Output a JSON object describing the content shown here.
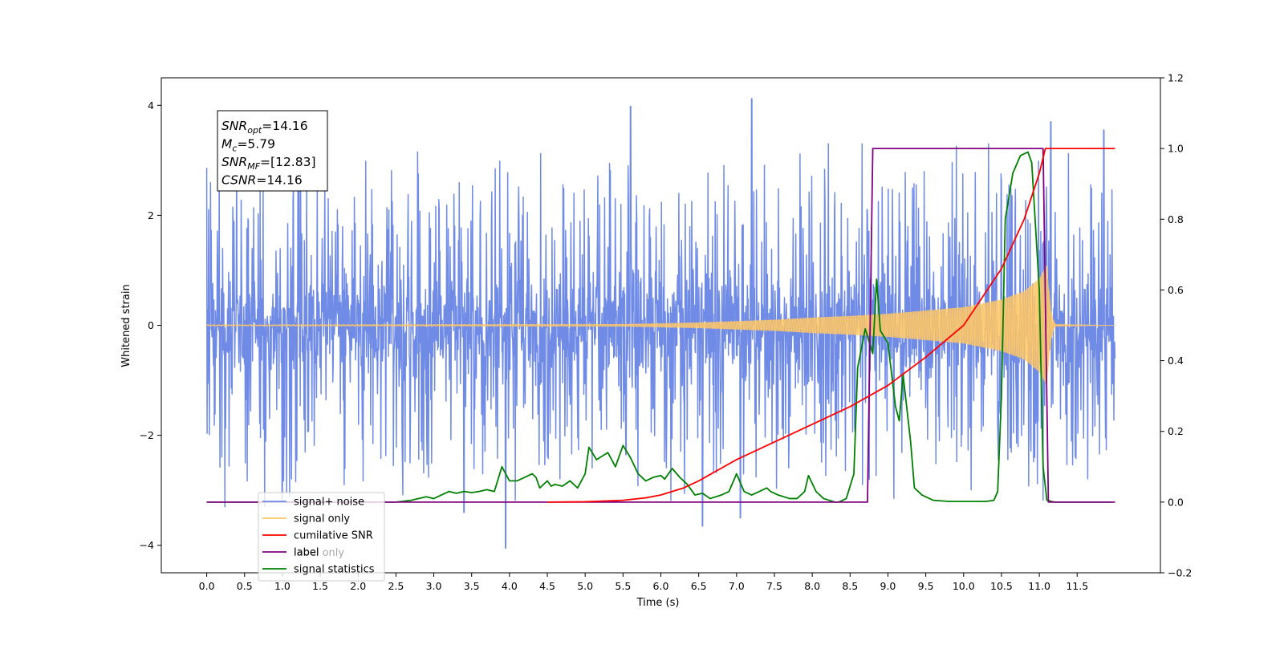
{
  "chart_data": {
    "type": "line",
    "xlabel": "Time (s)",
    "ylabel": "Whitened strain",
    "ylabel_right": "",
    "xlim": [
      -0.6,
      12.6
    ],
    "ylim": [
      -4.5,
      4.5
    ],
    "ylim_right": [
      -0.2,
      1.2
    ],
    "x_ticks": [
      0.0,
      0.5,
      1.0,
      1.5,
      2.0,
      2.5,
      3.0,
      3.5,
      4.0,
      4.5,
      5.0,
      5.5,
      6.0,
      6.5,
      7.0,
      7.5,
      8.0,
      8.5,
      9.0,
      9.5,
      10.0,
      10.5,
      11.0,
      11.5
    ],
    "x_tick_labels": [
      "0.0",
      "0.5",
      "1.0",
      "1.5",
      "2.0",
      "2.5",
      "3.0",
      "3.5",
      "4.0",
      "4.5",
      "5.0",
      "5.5",
      "6.0",
      "6.5",
      "7.0",
      "7.5",
      "8.0",
      "8.5",
      "9.0",
      "9.5",
      "10.0",
      "10.5",
      "11.0",
      "11.5"
    ],
    "y_ticks": [
      -4,
      -2,
      0,
      2,
      4
    ],
    "y_tick_labels": [
      "−4",
      "−2",
      "0",
      "2",
      "4"
    ],
    "y_right_ticks": [
      -0.2,
      0.0,
      0.2,
      0.4,
      0.6,
      0.8,
      1.0,
      1.2
    ],
    "y_right_tick_labels": [
      "−0.2",
      "0.0",
      "0.2",
      "0.4",
      "0.6",
      "0.8",
      "1.0",
      "1.2"
    ],
    "grid": false,
    "annotation": {
      "lines": [
        {
          "main": "SNR",
          "sub": "opt",
          "value": "=14.16"
        },
        {
          "main": "M",
          "sub": "c",
          "value": "=5.79"
        },
        {
          "main": "SNR",
          "sub": "MF",
          "value": "=[12.83]"
        },
        {
          "main": "CSNR",
          "sub": "",
          "value": "=14.16"
        }
      ]
    },
    "legend": {
      "placement": "lower-left",
      "entries": [
        {
          "label": "signal+ noise",
          "color": "#6f8be6"
        },
        {
          "label": "signal only",
          "color": "#ffc766"
        },
        {
          "label": "cumilative SNR",
          "color": "#ff0000"
        },
        {
          "label": "label",
          "color": "#800080"
        },
        {
          "label": "signal statistics",
          "color": "#008000"
        }
      ],
      "hidden_label": "label only"
    },
    "series": [
      {
        "name": "signal+ noise",
        "axis": "left",
        "color": "#6f8be6",
        "x_range": [
          0.0,
          12.0
        ],
        "envelope_typical": 1.9,
        "peak_spikes": [
          [
            1.0,
            -3.2
          ],
          [
            3.4,
            -3.4
          ],
          [
            3.95,
            -4.05
          ],
          [
            5.6,
            3.98
          ],
          [
            6.55,
            -3.65
          ],
          [
            7.05,
            -3.5
          ],
          [
            7.2,
            4.12
          ],
          [
            11.85,
            3.55
          ],
          [
            11.15,
            3.7
          ]
        ]
      },
      {
        "name": "signal only",
        "axis": "left",
        "color": "#ffc766",
        "x_range": [
          0.0,
          12.0
        ],
        "amplitude_envelope": [
          [
            0.0,
            0.01
          ],
          [
            5.5,
            0.02
          ],
          [
            6.5,
            0.05
          ],
          [
            7.5,
            0.1
          ],
          [
            8.0,
            0.14
          ],
          [
            8.5,
            0.17
          ],
          [
            9.0,
            0.21
          ],
          [
            9.5,
            0.27
          ],
          [
            10.0,
            0.33
          ],
          [
            10.5,
            0.47
          ],
          [
            10.8,
            0.62
          ],
          [
            11.0,
            0.85
          ],
          [
            11.1,
            1.1
          ],
          [
            11.15,
            0.3
          ],
          [
            11.2,
            0.02
          ],
          [
            12.0,
            0.0
          ]
        ]
      },
      {
        "name": "cumilative SNR",
        "axis": "right",
        "color": "#ff0000",
        "points": [
          [
            4.5,
            0.0
          ],
          [
            5.0,
            0.001
          ],
          [
            5.5,
            0.005
          ],
          [
            5.8,
            0.012
          ],
          [
            6.0,
            0.02
          ],
          [
            6.3,
            0.04
          ],
          [
            6.5,
            0.06
          ],
          [
            7.0,
            0.12
          ],
          [
            7.5,
            0.17
          ],
          [
            8.0,
            0.22
          ],
          [
            8.5,
            0.27
          ],
          [
            9.0,
            0.33
          ],
          [
            9.5,
            0.41
          ],
          [
            10.0,
            0.5
          ],
          [
            10.5,
            0.66
          ],
          [
            10.8,
            0.8
          ],
          [
            11.0,
            0.93
          ],
          [
            11.08,
            1.0
          ],
          [
            12.0,
            1.0
          ]
        ]
      },
      {
        "name": "label",
        "axis": "right",
        "color": "#800080",
        "points": [
          [
            0.0,
            0.0
          ],
          [
            8.73,
            0.0
          ],
          [
            8.8,
            1.0
          ],
          [
            11.05,
            1.0
          ],
          [
            11.12,
            0.0
          ],
          [
            12.0,
            0.0
          ]
        ]
      },
      {
        "name": "signal statistics",
        "axis": "right",
        "color": "#008000",
        "points": [
          [
            0.0,
            0.0
          ],
          [
            2.5,
            0.0
          ],
          [
            2.7,
            0.005
          ],
          [
            2.9,
            0.015
          ],
          [
            3.0,
            0.01
          ],
          [
            3.1,
            0.02
          ],
          [
            3.2,
            0.03
          ],
          [
            3.3,
            0.025
          ],
          [
            3.4,
            0.03
          ],
          [
            3.5,
            0.027
          ],
          [
            3.6,
            0.03
          ],
          [
            3.7,
            0.035
          ],
          [
            3.8,
            0.03
          ],
          [
            3.9,
            0.1
          ],
          [
            4.0,
            0.06
          ],
          [
            4.1,
            0.06
          ],
          [
            4.2,
            0.07
          ],
          [
            4.3,
            0.08
          ],
          [
            4.35,
            0.07
          ],
          [
            4.4,
            0.04
          ],
          [
            4.5,
            0.06
          ],
          [
            4.55,
            0.045
          ],
          [
            4.6,
            0.05
          ],
          [
            4.7,
            0.045
          ],
          [
            4.8,
            0.06
          ],
          [
            4.9,
            0.04
          ],
          [
            5.0,
            0.08
          ],
          [
            5.05,
            0.155
          ],
          [
            5.15,
            0.12
          ],
          [
            5.3,
            0.14
          ],
          [
            5.4,
            0.1
          ],
          [
            5.5,
            0.16
          ],
          [
            5.6,
            0.125
          ],
          [
            5.7,
            0.08
          ],
          [
            5.8,
            0.06
          ],
          [
            5.9,
            0.07
          ],
          [
            6.0,
            0.075
          ],
          [
            6.05,
            0.065
          ],
          [
            6.15,
            0.095
          ],
          [
            6.25,
            0.07
          ],
          [
            6.35,
            0.05
          ],
          [
            6.45,
            0.02
          ],
          [
            6.55,
            0.025
          ],
          [
            6.65,
            0.01
          ],
          [
            6.8,
            0.02
          ],
          [
            6.9,
            0.03
          ],
          [
            7.0,
            0.08
          ],
          [
            7.1,
            0.03
          ],
          [
            7.2,
            0.02
          ],
          [
            7.3,
            0.03
          ],
          [
            7.4,
            0.04
          ],
          [
            7.45,
            0.03
          ],
          [
            7.55,
            0.02
          ],
          [
            7.7,
            0.01
          ],
          [
            7.8,
            0.01
          ],
          [
            7.9,
            0.03
          ],
          [
            7.95,
            0.075
          ],
          [
            8.05,
            0.03
          ],
          [
            8.15,
            0.01
          ],
          [
            8.3,
            0.0
          ],
          [
            8.35,
            0.0
          ],
          [
            8.45,
            0.01
          ],
          [
            8.55,
            0.08
          ],
          [
            8.6,
            0.38
          ],
          [
            8.7,
            0.49
          ],
          [
            8.8,
            0.42
          ],
          [
            8.85,
            0.63
          ],
          [
            8.9,
            0.485
          ],
          [
            9.0,
            0.45
          ],
          [
            9.1,
            0.27
          ],
          [
            9.15,
            0.23
          ],
          [
            9.2,
            0.36
          ],
          [
            9.3,
            0.17
          ],
          [
            9.35,
            0.04
          ],
          [
            9.45,
            0.02
          ],
          [
            9.6,
            0.005
          ],
          [
            9.8,
            0.002
          ],
          [
            10.3,
            0.002
          ],
          [
            10.4,
            0.005
          ],
          [
            10.45,
            0.03
          ],
          [
            10.5,
            0.3
          ],
          [
            10.55,
            0.8
          ],
          [
            10.65,
            0.93
          ],
          [
            10.75,
            0.98
          ],
          [
            10.85,
            0.99
          ],
          [
            10.9,
            0.96
          ],
          [
            11.0,
            0.6
          ],
          [
            11.05,
            0.1
          ],
          [
            11.1,
            0.005
          ],
          [
            11.2,
            0.0
          ],
          [
            11.95,
            0.0
          ]
        ]
      }
    ]
  }
}
